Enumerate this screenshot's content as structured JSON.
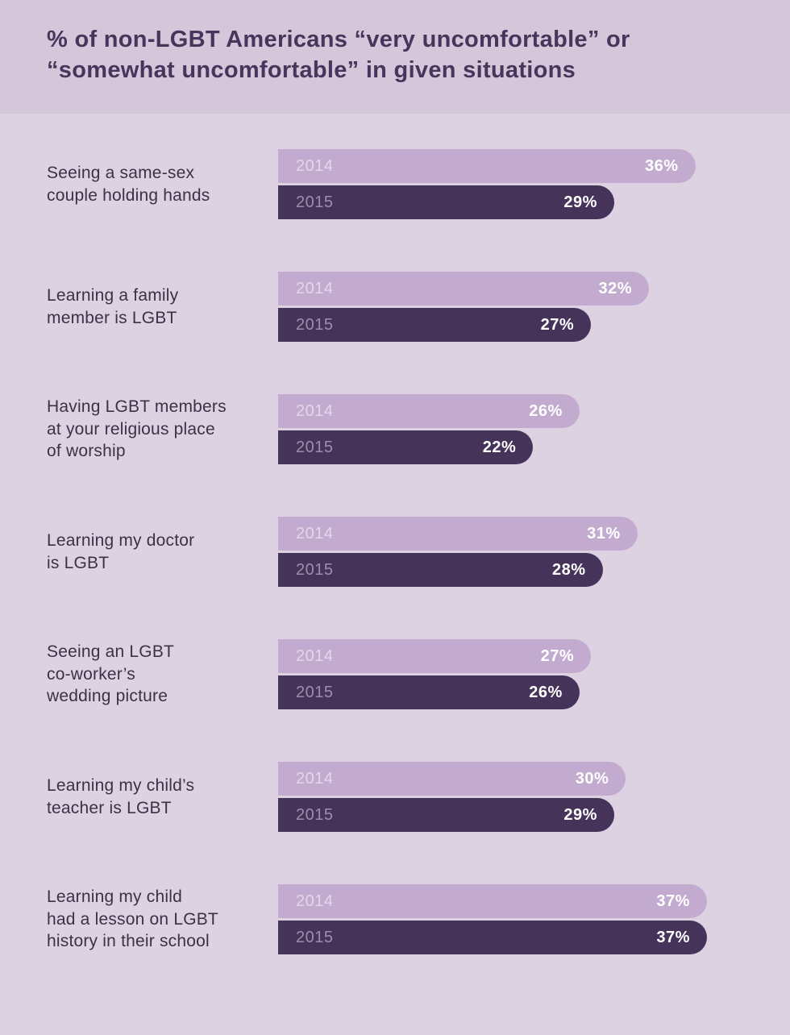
{
  "header": {
    "title": "% of non-LGBT Americans “very uncomfortable” or\n“somewhat uncomfortable” in given situations"
  },
  "chart_data": {
    "type": "bar",
    "orientation": "horizontal",
    "title": "% of non-LGBT Americans “very uncomfortable” or “somewhat uncomfortable” in given situations",
    "categories": [
      "Seeing a same-sex\ncouple holding hands",
      "Learning a family\nmember is LGBT",
      "Having LGBT members\nat your religious place\nof worship",
      "Learning my doctor\nis LGBT",
      "Seeing an LGBT\nco-worker’s\nwedding picture",
      "Learning my child’s\nteacher is LGBT",
      "Learning my child\nhad a lesson on LGBT\nhistory in their school"
    ],
    "series": [
      {
        "name": "2014",
        "values": [
          36,
          32,
          26,
          31,
          27,
          30,
          37
        ]
      },
      {
        "name": "2015",
        "values": [
          29,
          27,
          22,
          28,
          26,
          29,
          37
        ]
      }
    ],
    "value_suffix": "%",
    "xlim": [
      0,
      40
    ],
    "grid": false,
    "legend_position": "in-bar",
    "colors": {
      "series_2014": "#c3abd0",
      "series_2015": "#45335a",
      "background": "#ddd2e1",
      "header_background": "#d5c7da",
      "title_text": "#47355c",
      "label_text": "#3e3047",
      "value_text": "#ffffff"
    }
  }
}
